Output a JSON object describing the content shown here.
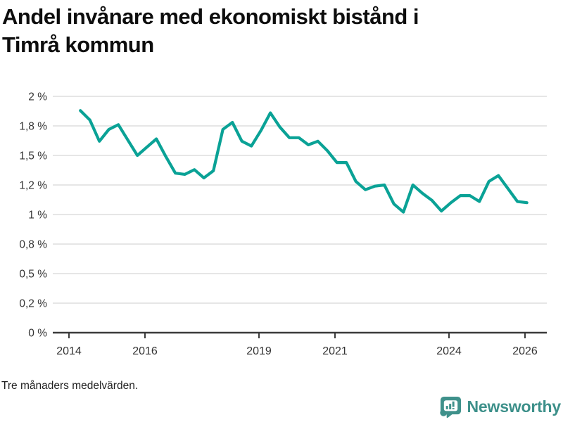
{
  "title_lines": [
    "Andel invånare med ekonomiskt bistånd i",
    "Timrå kommun"
  ],
  "footer": {
    "note": "Tre månaders medelvärden."
  },
  "branding": {
    "logo_text": "Newsworthy",
    "logo_color": "#3d908a",
    "icon_color": "#3f918b",
    "icon_name": "newsworthy-bar-chart-bubble-icon"
  },
  "chart_data": {
    "type": "line",
    "title": "Andel invånare med ekonomiskt bistånd i Timrå kommun",
    "subtitle_note": "Tre månaders medelvärden.",
    "xlabel": "",
    "ylabel": "",
    "unit": "%",
    "decimal_style": "comma",
    "grid": "horizontal",
    "legend": "none",
    "line_color": "#0aa296",
    "grid_color": "#dedede",
    "axis_color": "#3b3b3b",
    "tick_text_color": "#333333",
    "ylim": [
      0,
      2
    ],
    "xlim": [
      2013.57,
      2026.57
    ],
    "yticks": [
      {
        "value": 0,
        "label": "0 %"
      },
      {
        "value": 0.25,
        "label": "0,2 %"
      },
      {
        "value": 0.5,
        "label": "0,5 %"
      },
      {
        "value": 0.75,
        "label": "0,8 %"
      },
      {
        "value": 1,
        "label": "1 %"
      },
      {
        "value": 1.25,
        "label": "1,2 %"
      },
      {
        "value": 1.5,
        "label": "1,5 %"
      },
      {
        "value": 1.75,
        "label": "1,8 %"
      },
      {
        "value": 2,
        "label": "2 %"
      }
    ],
    "xticks": [
      {
        "value": 2014,
        "label": "2014"
      },
      {
        "value": 2016,
        "label": "2016"
      },
      {
        "value": 2019,
        "label": "2019"
      },
      {
        "value": 2021,
        "label": "2021"
      },
      {
        "value": 2024,
        "label": "2024"
      },
      {
        "value": 2026,
        "label": "2026"
      }
    ],
    "x": [
      2014.3,
      2014.55,
      2014.8,
      2015.05,
      2015.3,
      2015.55,
      2015.8,
      2016.05,
      2016.3,
      2016.55,
      2016.8,
      2017.05,
      2017.3,
      2017.55,
      2017.8,
      2018.05,
      2018.3,
      2018.55,
      2018.8,
      2019.05,
      2019.3,
      2019.55,
      2019.8,
      2020.05,
      2020.3,
      2020.55,
      2020.8,
      2021.05,
      2021.3,
      2021.55,
      2021.8,
      2022.05,
      2022.3,
      2022.55,
      2022.8,
      2023.05,
      2023.3,
      2023.55,
      2023.8,
      2024.05,
      2024.3,
      2024.55,
      2024.8,
      2025.05,
      2025.3,
      2025.55,
      2025.8,
      2026.05
    ],
    "values": [
      1.88,
      1.8,
      1.62,
      1.72,
      1.76,
      1.63,
      1.5,
      1.57,
      1.64,
      1.49,
      1.35,
      1.34,
      1.38,
      1.31,
      1.37,
      1.72,
      1.78,
      1.62,
      1.58,
      1.71,
      1.86,
      1.74,
      1.65,
      1.65,
      1.59,
      1.62,
      1.54,
      1.44,
      1.44,
      1.28,
      1.21,
      1.24,
      1.25,
      1.09,
      1.02,
      1.25,
      1.18,
      1.12,
      1.03,
      1.1,
      1.16,
      1.16,
      1.11,
      1.28,
      1.33,
      1.22,
      1.11,
      1.1
    ]
  }
}
